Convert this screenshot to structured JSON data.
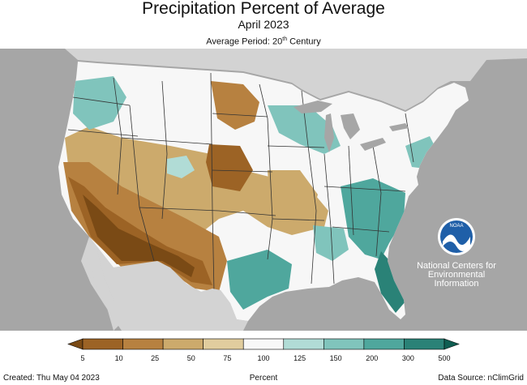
{
  "header": {
    "title": "Precipitation Percent of Average",
    "month": "April 2023",
    "period_prefix": "Average Period: 20",
    "period_sup": "th",
    "period_suffix": " Century"
  },
  "logo": {
    "agency": "NOAA",
    "caption_line1": "National Centers for",
    "caption_line2": "Environmental",
    "caption_line3": "Information"
  },
  "legend": {
    "ticks": [
      "5",
      "10",
      "25",
      "50",
      "75",
      "100",
      "125",
      "150",
      "200",
      "300",
      "500"
    ],
    "colors": [
      "#7a4a15",
      "#9c6325",
      "#b78140",
      "#ccaa6c",
      "#e1cd9e",
      "#f7f7f7",
      "#b1dcd6",
      "#80c4bc",
      "#4fa79d",
      "#2a8277",
      "#0f5e52"
    ],
    "label": "Percent"
  },
  "footer": {
    "created": "Created: Thu May 04 2023",
    "source": "Data Source: nClimGrid"
  },
  "colors": {
    "ocean": "#a6a6a6",
    "neighbor_land": "#d3d3d3",
    "lakes": "#a6a6a6",
    "county_lines": "#bfbfbf",
    "state_lines": "#333333",
    "noaa_blue": "#1f5fa8"
  }
}
